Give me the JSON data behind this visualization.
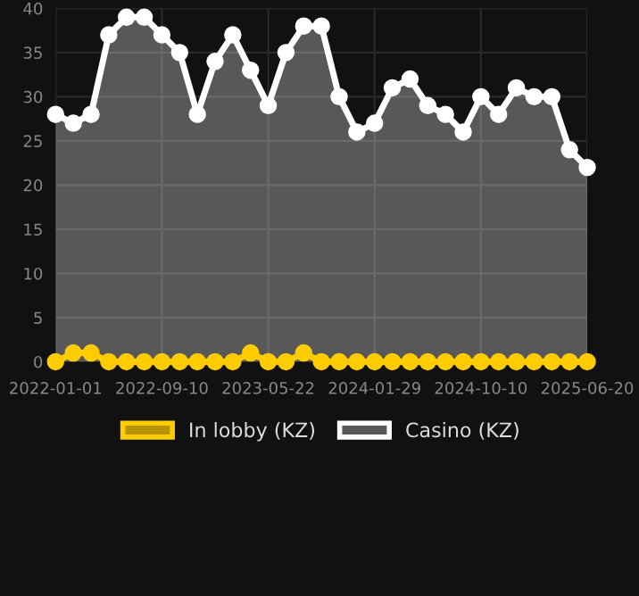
{
  "chart_data": {
    "type": "area",
    "categories": [
      "2022-01-01",
      null,
      null,
      null,
      null,
      null,
      "2022-09-10",
      null,
      null,
      null,
      null,
      null,
      "2023-05-22",
      null,
      null,
      null,
      null,
      null,
      "2024-01-29",
      null,
      null,
      null,
      null,
      null,
      "2024-10-10",
      null,
      null,
      null,
      null,
      null,
      "2025-06-20"
    ],
    "series": [
      {
        "name": "In lobby (KZ)",
        "type": "line",
        "color": "#ffcc00",
        "values": [
          0,
          1,
          1,
          0,
          0,
          0,
          0,
          0,
          0,
          0,
          0,
          1,
          0,
          0,
          1,
          0,
          0,
          0,
          0,
          0,
          0,
          0,
          0,
          0,
          0,
          0,
          0,
          0,
          0,
          0,
          0
        ]
      },
      {
        "name": "Casino (KZ)",
        "color": "#ffffff",
        "values": [
          28,
          27,
          28,
          37,
          39,
          39,
          37,
          35,
          28,
          34,
          37,
          33,
          29,
          35,
          38,
          38,
          30,
          26,
          27,
          31,
          32,
          29,
          28,
          26,
          30,
          28,
          31,
          30,
          30,
          24,
          22
        ]
      }
    ],
    "ylim": [
      0,
      40
    ],
    "yticks": [
      0,
      5,
      10,
      15,
      20,
      25,
      30,
      35,
      40
    ],
    "grid": true,
    "legend": "bottom",
    "marker": "circle",
    "line_style": "solid"
  }
}
